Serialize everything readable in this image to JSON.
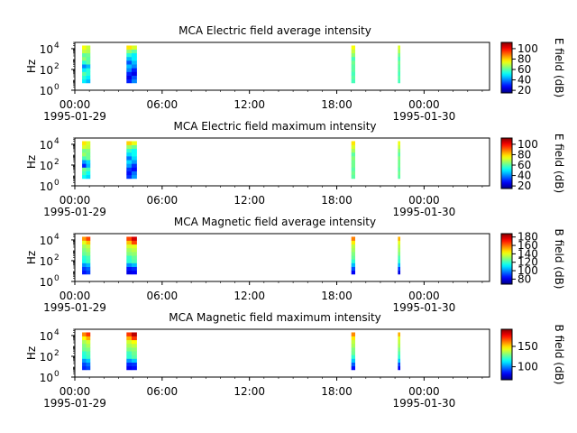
{
  "chart_data": [
    {
      "type": "heatmap",
      "title": "MCA  Electric field average intensity",
      "ylabel": "Hz",
      "yscale": "log",
      "ylim": [
        1,
        40000
      ],
      "yticks": [
        {
          "base": "10",
          "exp": "0"
        },
        {
          "base": "10",
          "exp": "2"
        },
        {
          "base": "10",
          "exp": "4"
        }
      ],
      "xlim": [
        0,
        28.5
      ],
      "xticks": [
        {
          "value": 0,
          "label": "00:00"
        },
        {
          "value": 6,
          "label": "06:00"
        },
        {
          "value": 12,
          "label": "12:00"
        },
        {
          "value": 18,
          "label": "18:00"
        },
        {
          "value": 24,
          "label": "00:00"
        }
      ],
      "date_labels": [
        {
          "value": 0,
          "label": "1995-01-29"
        },
        {
          "value": 24,
          "label": "1995-01-30"
        }
      ],
      "colorbar": {
        "label": "E field (dB)",
        "range": [
          15,
          112
        ],
        "ticks": [
          {
            "value": 20,
            "label": "20"
          },
          {
            "value": 40,
            "label": "40"
          },
          {
            "value": 60,
            "label": "60"
          },
          {
            "value": 80,
            "label": "80"
          },
          {
            "value": 100,
            "label": "100"
          }
        ],
        "colormap": "jet"
      },
      "intervals": [
        {
          "start_hour": 0.5,
          "end_hour": 1.05,
          "values_db": [
            [
              50,
              45
            ],
            [
              55,
              50
            ],
            [
              60,
              55
            ],
            [
              50,
              55
            ],
            [
              40,
              45
            ],
            [
              55,
              60
            ],
            [
              65,
              60
            ],
            [
              60,
              62
            ],
            [
              70,
              68
            ],
            [
              75,
              70
            ]
          ]
        },
        {
          "start_hour": 3.55,
          "end_hour": 4.25,
          "values_db": [
            [
              30,
              40
            ],
            [
              25,
              35
            ],
            [
              30,
              25
            ],
            [
              40,
              30
            ],
            [
              45,
              40
            ],
            [
              35,
              45
            ],
            [
              45,
              50
            ],
            [
              55,
              50
            ],
            [
              65,
              60
            ],
            [
              78,
              72
            ]
          ]
        },
        {
          "start_hour": 19.0,
          "end_hour": 19.25,
          "values_db": [
            [
              58
            ],
            [
              60
            ],
            [
              58
            ],
            [
              60
            ],
            [
              60
            ],
            [
              62
            ],
            [
              58
            ],
            [
              65
            ],
            [
              70
            ],
            [
              75
            ]
          ]
        },
        {
          "start_hour": 22.2,
          "end_hour": 22.35,
          "values_db": [
            [
              58
            ],
            [
              60
            ],
            [
              58
            ],
            [
              60
            ],
            [
              60
            ],
            [
              62
            ],
            [
              58
            ],
            [
              62
            ],
            [
              68
            ],
            [
              72
            ]
          ]
        }
      ]
    },
    {
      "type": "heatmap",
      "title": "MCA  Electric field maximum intensity",
      "ylabel": "Hz",
      "yscale": "log",
      "ylim": [
        1,
        40000
      ],
      "yticks": [
        {
          "base": "10",
          "exp": "0"
        },
        {
          "base": "10",
          "exp": "2"
        },
        {
          "base": "10",
          "exp": "4"
        }
      ],
      "xlim": [
        0,
        28.5
      ],
      "xticks": [
        {
          "value": 0,
          "label": "00:00"
        },
        {
          "value": 6,
          "label": "06:00"
        },
        {
          "value": 12,
          "label": "12:00"
        },
        {
          "value": 18,
          "label": "18:00"
        },
        {
          "value": 24,
          "label": "00:00"
        }
      ],
      "date_labels": [
        {
          "value": 0,
          "label": "1995-01-29"
        },
        {
          "value": 24,
          "label": "1995-01-30"
        }
      ],
      "colorbar": {
        "label": "E field (dB)",
        "range": [
          15,
          112
        ],
        "ticks": [
          {
            "value": 20,
            "label": "20"
          },
          {
            "value": 40,
            "label": "40"
          },
          {
            "value": 60,
            "label": "60"
          },
          {
            "value": 80,
            "label": "80"
          },
          {
            "value": 100,
            "label": "100"
          }
        ],
        "colormap": "jet"
      },
      "intervals": [
        {
          "start_hour": 0.5,
          "end_hour": 1.05,
          "values_db": [
            [
              52,
              48
            ],
            [
              58,
              52
            ],
            [
              62,
              58
            ],
            [
              30,
              45
            ],
            [
              42,
              48
            ],
            [
              58,
              62
            ],
            [
              66,
              62
            ],
            [
              62,
              64
            ],
            [
              72,
              70
            ],
            [
              78,
              72
            ]
          ]
        },
        {
          "start_hour": 3.55,
          "end_hour": 4.25,
          "values_db": [
            [
              32,
              42
            ],
            [
              28,
              38
            ],
            [
              32,
              28
            ],
            [
              42,
              32
            ],
            [
              48,
              42
            ],
            [
              38,
              48
            ],
            [
              48,
              52
            ],
            [
              56,
              52
            ],
            [
              66,
              62
            ],
            [
              80,
              74
            ]
          ]
        },
        {
          "start_hour": 19.0,
          "end_hour": 19.25,
          "values_db": [
            [
              60
            ],
            [
              62
            ],
            [
              60
            ],
            [
              62
            ],
            [
              62
            ],
            [
              64
            ],
            [
              60
            ],
            [
              67
            ],
            [
              72
            ],
            [
              78
            ]
          ]
        },
        {
          "start_hour": 22.2,
          "end_hour": 22.35,
          "values_db": [
            [
              60
            ],
            [
              62
            ],
            [
              60
            ],
            [
              62
            ],
            [
              62
            ],
            [
              64
            ],
            [
              60
            ],
            [
              64
            ],
            [
              70
            ],
            [
              74
            ]
          ]
        }
      ]
    },
    {
      "type": "heatmap",
      "title": "MCA  Magnetic field average intensity",
      "ylabel": "Hz",
      "yscale": "log",
      "ylim": [
        1,
        40000
      ],
      "yticks": [
        {
          "base": "10",
          "exp": "0"
        },
        {
          "base": "10",
          "exp": "2"
        },
        {
          "base": "10",
          "exp": "4"
        }
      ],
      "xlim": [
        0,
        28.5
      ],
      "xticks": [
        {
          "value": 0,
          "label": "00:00"
        },
        {
          "value": 6,
          "label": "06:00"
        },
        {
          "value": 12,
          "label": "12:00"
        },
        {
          "value": 18,
          "label": "18:00"
        },
        {
          "value": 24,
          "label": "00:00"
        }
      ],
      "date_labels": [
        {
          "value": 0,
          "label": "1995-01-29"
        },
        {
          "value": 24,
          "label": "1995-01-30"
        }
      ],
      "colorbar": {
        "label": "B field (dB)",
        "range": [
          68,
          188
        ],
        "ticks": [
          {
            "value": 80,
            "label": "80"
          },
          {
            "value": 100,
            "label": "100"
          },
          {
            "value": 120,
            "label": "120"
          },
          {
            "value": 140,
            "label": "140"
          },
          {
            "value": 160,
            "label": "160"
          },
          {
            "value": 180,
            "label": "180"
          }
        ],
        "colormap": "jet"
      },
      "intervals": [
        {
          "start_hour": 0.5,
          "end_hour": 1.05,
          "values_db": [
            [
              85,
              90
            ],
            [
              90,
              95
            ],
            [
              100,
              105
            ],
            [
              115,
              120
            ],
            [
              118,
              122
            ],
            [
              125,
              128
            ],
            [
              128,
              132
            ],
            [
              132,
              136
            ],
            [
              140,
              150
            ],
            [
              155,
              165
            ]
          ]
        },
        {
          "start_hour": 3.55,
          "end_hour": 4.25,
          "values_db": [
            [
              80,
              82
            ],
            [
              85,
              88
            ],
            [
              100,
              105
            ],
            [
              118,
              122
            ],
            [
              120,
              125
            ],
            [
              128,
              130
            ],
            [
              132,
              135
            ],
            [
              138,
              140
            ],
            [
              150,
              165
            ],
            [
              165,
              178
            ]
          ]
        },
        {
          "start_hour": 19.0,
          "end_hour": 19.25,
          "values_db": [
            [
              82
            ],
            [
              92
            ],
            [
              105
            ],
            [
              118
            ],
            [
              125
            ],
            [
              128
            ],
            [
              132
            ],
            [
              135
            ],
            [
              145
            ],
            [
              158
            ]
          ]
        },
        {
          "start_hour": 22.2,
          "end_hour": 22.35,
          "values_db": [
            [
              80
            ],
            [
              90
            ],
            [
              105
            ],
            [
              118
            ],
            [
              122
            ],
            [
              128
            ],
            [
              132
            ],
            [
              135
            ],
            [
              140
            ],
            [
              152
            ]
          ]
        }
      ]
    },
    {
      "type": "heatmap",
      "title": "MCA  Magnetic field maximum intensity",
      "ylabel": "Hz",
      "yscale": "log",
      "ylim": [
        1,
        40000
      ],
      "yticks": [
        {
          "base": "10",
          "exp": "0"
        },
        {
          "base": "10",
          "exp": "2"
        },
        {
          "base": "10",
          "exp": "4"
        }
      ],
      "xlim": [
        0,
        28.5
      ],
      "xticks": [
        {
          "value": 0,
          "label": "00:00"
        },
        {
          "value": 6,
          "label": "06:00"
        },
        {
          "value": 12,
          "label": "12:00"
        },
        {
          "value": 18,
          "label": "18:00"
        },
        {
          "value": 24,
          "label": "00:00"
        }
      ],
      "date_labels": [
        {
          "value": 0,
          "label": "1995-01-29"
        },
        {
          "value": 24,
          "label": "1995-01-30"
        }
      ],
      "colorbar": {
        "label": "B field (dB)",
        "range": [
          68,
          192
        ],
        "ticks": [
          {
            "value": 100,
            "label": "100"
          },
          {
            "value": 150,
            "label": "150"
          }
        ],
        "colormap": "jet"
      },
      "intervals": [
        {
          "start_hour": 0.5,
          "end_hour": 1.05,
          "values_db": [
            [
              88,
              92
            ],
            [
              92,
              98
            ],
            [
              102,
              108
            ],
            [
              118,
              122
            ],
            [
              120,
              125
            ],
            [
              128,
              130
            ],
            [
              130,
              135
            ],
            [
              135,
              140
            ],
            [
              145,
              155
            ],
            [
              160,
              170
            ]
          ]
        },
        {
          "start_hour": 3.55,
          "end_hour": 4.25,
          "values_db": [
            [
              82,
              85
            ],
            [
              88,
              90
            ],
            [
              102,
              108
            ],
            [
              120,
              125
            ],
            [
              122,
              128
            ],
            [
              130,
              132
            ],
            [
              135,
              138
            ],
            [
              140,
              145
            ],
            [
              155,
              170
            ],
            [
              170,
              185
            ]
          ]
        },
        {
          "start_hour": 19.0,
          "end_hour": 19.25,
          "values_db": [
            [
              85
            ],
            [
              95
            ],
            [
              108
            ],
            [
              120
            ],
            [
              128
            ],
            [
              130
            ],
            [
              135
            ],
            [
              138
            ],
            [
              148
            ],
            [
              160
            ]
          ]
        },
        {
          "start_hour": 22.2,
          "end_hour": 22.35,
          "values_db": [
            [
              82
            ],
            [
              92
            ],
            [
              108
            ],
            [
              120
            ],
            [
              125
            ],
            [
              130
            ],
            [
              135
            ],
            [
              138
            ],
            [
              142
            ],
            [
              155
            ]
          ]
        }
      ]
    }
  ]
}
